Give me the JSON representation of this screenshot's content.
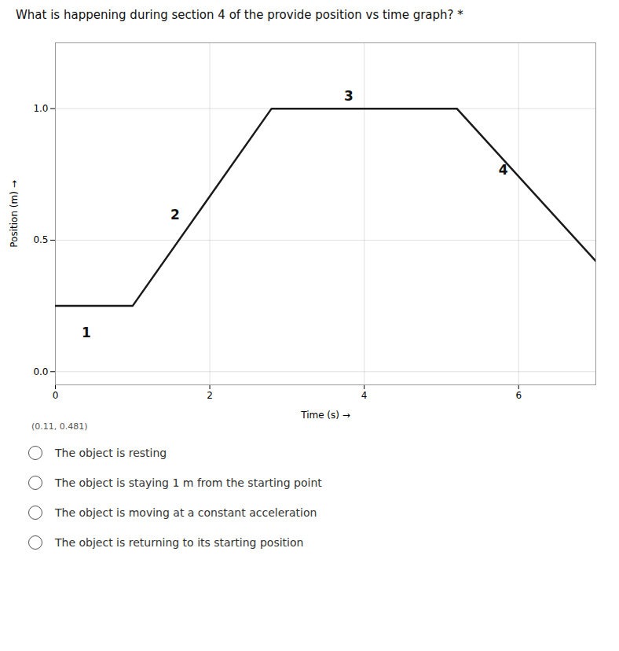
{
  "chart_data": {
    "type": "line",
    "title": "What is happening during section 4 of the provide position vs time graph? *",
    "x_label": "Time (s)",
    "y_label": "Position (m)",
    "x": [
      0,
      1.0,
      2.8,
      3.8,
      5.2,
      7.0
    ],
    "values": [
      0.25,
      0.25,
      1.0,
      1.0,
      1.0,
      0.42
    ],
    "color": "#1a1a1a",
    "annotations": [
      {
        "text": "1",
        "x": 0.4,
        "y": 0.13
      },
      {
        "text": "2",
        "x": 1.55,
        "y": 0.58
      },
      {
        "text": "3",
        "x": 3.8,
        "y": 1.03
      },
      {
        "text": "4",
        "x": 5.8,
        "y": 0.75
      }
    ],
    "xlim": [
      0,
      7.0
    ],
    "ylim": [
      -0.05,
      1.25
    ],
    "xticks": [
      0,
      2,
      4,
      6
    ],
    "yticks": [
      {
        "value": 0.0,
        "label": "0.0"
      },
      {
        "value": 0.5,
        "label": "0.5"
      },
      {
        "value": 1.0,
        "label": "1.0"
      }
    ],
    "grid": true,
    "cursor_label": "(0.11, 0.481)",
    "options": [
      "The object is resting",
      "The object is staying 1 m from the starting point",
      "The object is moving at a constant acceleration",
      "The object is returning to its starting position"
    ]
  }
}
